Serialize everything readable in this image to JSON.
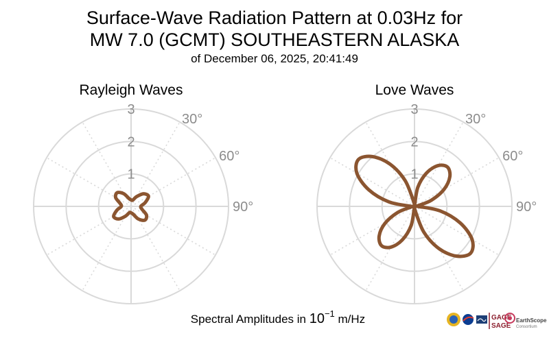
{
  "header": {
    "title_line1": "Surface-Wave Radiation Pattern at 0.03Hz for",
    "title_line2": "MW 7.0 (GCMT) SOUTHEASTERN ALASKA",
    "subtitle": "of December 06, 2025, 20:41:49"
  },
  "footer": {
    "amplitude_label_prefix": "Spectral Amplitudes in ",
    "amplitude_label_base": "10",
    "amplitude_label_exponent": "−1",
    "amplitude_label_unit": " m/Hz"
  },
  "logos": {
    "gage": "GAGE",
    "sage": "SAGE",
    "earthscope": "EarthScope",
    "consortium": "Consortium"
  },
  "colors": {
    "pattern": "#8B5530",
    "grid": "#d9d9d9",
    "tick_label": "#8c8c8c"
  },
  "chart_data": [
    {
      "type": "polar-line",
      "title": "Rayleigh Waves",
      "radial_ticks": [
        "1",
        "2",
        "3"
      ],
      "radial_range": [
        0,
        3
      ],
      "angle_ticks": [
        "30°",
        "60°",
        "90°"
      ],
      "angle_direction": "clockwise from north",
      "grid": true,
      "series": [
        {
          "angles_deg": [
            0,
            15,
            30,
            45,
            60,
            75,
            90,
            105,
            120,
            135,
            150,
            165,
            180,
            195,
            210,
            225,
            240,
            255,
            270,
            285,
            300,
            315,
            330,
            345
          ],
          "values": [
            0.2,
            0.2,
            0.35,
            0.55,
            0.62,
            0.45,
            0.3,
            0.35,
            0.55,
            0.6,
            0.45,
            0.25,
            0.2,
            0.2,
            0.35,
            0.55,
            0.62,
            0.45,
            0.3,
            0.35,
            0.55,
            0.6,
            0.45,
            0.25
          ]
        }
      ]
    },
    {
      "type": "polar-line",
      "title": "Love Waves",
      "radial_ticks": [
        "1",
        "2",
        "3"
      ],
      "radial_range": [
        0,
        3
      ],
      "angle_ticks": [
        "30°",
        "60°",
        "90°"
      ],
      "angle_direction": "clockwise from north",
      "grid": true,
      "series": [
        {
          "angles_deg": [
            0,
            10,
            20,
            30,
            40,
            50,
            60,
            70,
            80,
            90,
            100,
            110,
            120,
            130,
            140,
            150,
            160,
            170,
            180,
            190,
            200,
            210,
            220,
            230,
            240,
            250,
            260,
            270,
            280,
            290,
            300,
            310,
            320,
            330,
            340,
            350
          ],
          "values": [
            0.03,
            0.6,
            1.1,
            1.45,
            1.58,
            1.42,
            1.05,
            0.55,
            0.1,
            0.1,
            0.8,
            1.5,
            2.05,
            2.25,
            2.0,
            1.5,
            0.85,
            0.15,
            0.03,
            0.6,
            1.1,
            1.45,
            1.58,
            1.42,
            1.05,
            0.55,
            0.1,
            0.1,
            0.8,
            1.5,
            2.05,
            2.25,
            2.0,
            1.5,
            0.85,
            0.15
          ]
        }
      ]
    }
  ]
}
